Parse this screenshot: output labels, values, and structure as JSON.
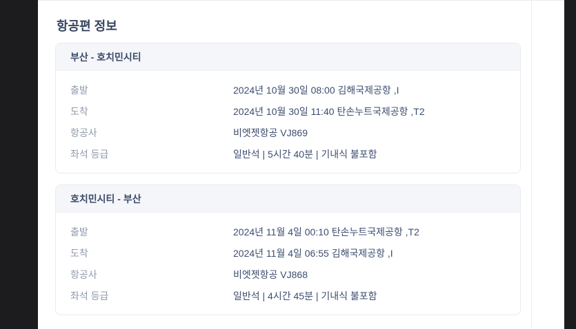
{
  "page": {
    "title": "항공편 정보"
  },
  "sections": [
    {
      "route": "부산 - 호치민시티",
      "rows": [
        {
          "label": "출발",
          "value": "2024년 10월 30일 08:00 김해국제공항 ,I"
        },
        {
          "label": "도착",
          "value": "2024년 10월 30일 11:40 탄손누트국제공항 ,T2"
        },
        {
          "label": "항공사",
          "value": "비엣젯항공 VJ869"
        },
        {
          "label": "좌석 등급",
          "value": "일반석 | 5시간 40분 | 기내식 불포함"
        }
      ]
    },
    {
      "route": "호치민시티 - 부산",
      "rows": [
        {
          "label": "출발",
          "value": "2024년 11월 4일 00:10 탄손누트국제공항 ,T2"
        },
        {
          "label": "도착",
          "value": "2024년 11월 4일 06:55 김해국제공항 ,I"
        },
        {
          "label": "항공사",
          "value": "비엣젯항공 VJ868"
        },
        {
          "label": "좌석 등급",
          "value": "일반석 | 4시간 45분 | 기내식 불포함"
        }
      ]
    }
  ],
  "colors": {
    "page_background": "#1c1c1f",
    "content_background": "#ffffff",
    "section_header_background": "#f5f6f9",
    "card_border": "#e9ebef",
    "title_text": "#36455f",
    "label_text": "#8f9aac",
    "value_text": "#3c4d6f"
  }
}
